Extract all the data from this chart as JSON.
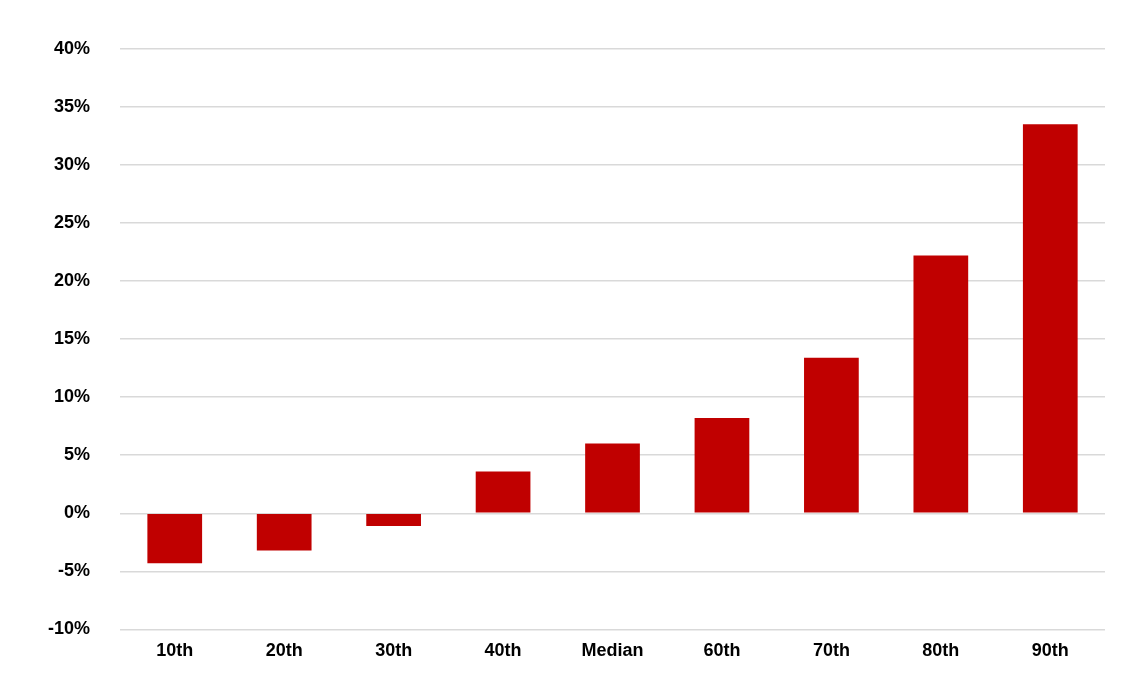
{
  "chart_data": {
    "type": "bar",
    "categories": [
      "10th",
      "20th",
      "30th",
      "40th",
      "Median",
      "60th",
      "70th",
      "80th",
      "90th"
    ],
    "series": [
      {
        "color": "#c00000",
        "values": [
          -4.3,
          -3.2,
          -1.1,
          3.6,
          6.0,
          8.2,
          13.4,
          22.2,
          33.5
        ]
      }
    ],
    "ylim": [
      -10,
      40
    ],
    "yticks": [
      {
        "value": -10,
        "label": "-10%"
      },
      {
        "value": -5,
        "label": "-5%"
      },
      {
        "value": 0,
        "label": "0%"
      },
      {
        "value": 5,
        "label": "5%"
      },
      {
        "value": 10,
        "label": "10%"
      },
      {
        "value": 15,
        "label": "15%"
      },
      {
        "value": 20,
        "label": "20%"
      },
      {
        "value": 25,
        "label": "25%"
      },
      {
        "value": 30,
        "label": "30%"
      },
      {
        "value": 35,
        "label": "35%"
      },
      {
        "value": 40,
        "label": "40%"
      }
    ],
    "grid": "y",
    "legend": false
  }
}
